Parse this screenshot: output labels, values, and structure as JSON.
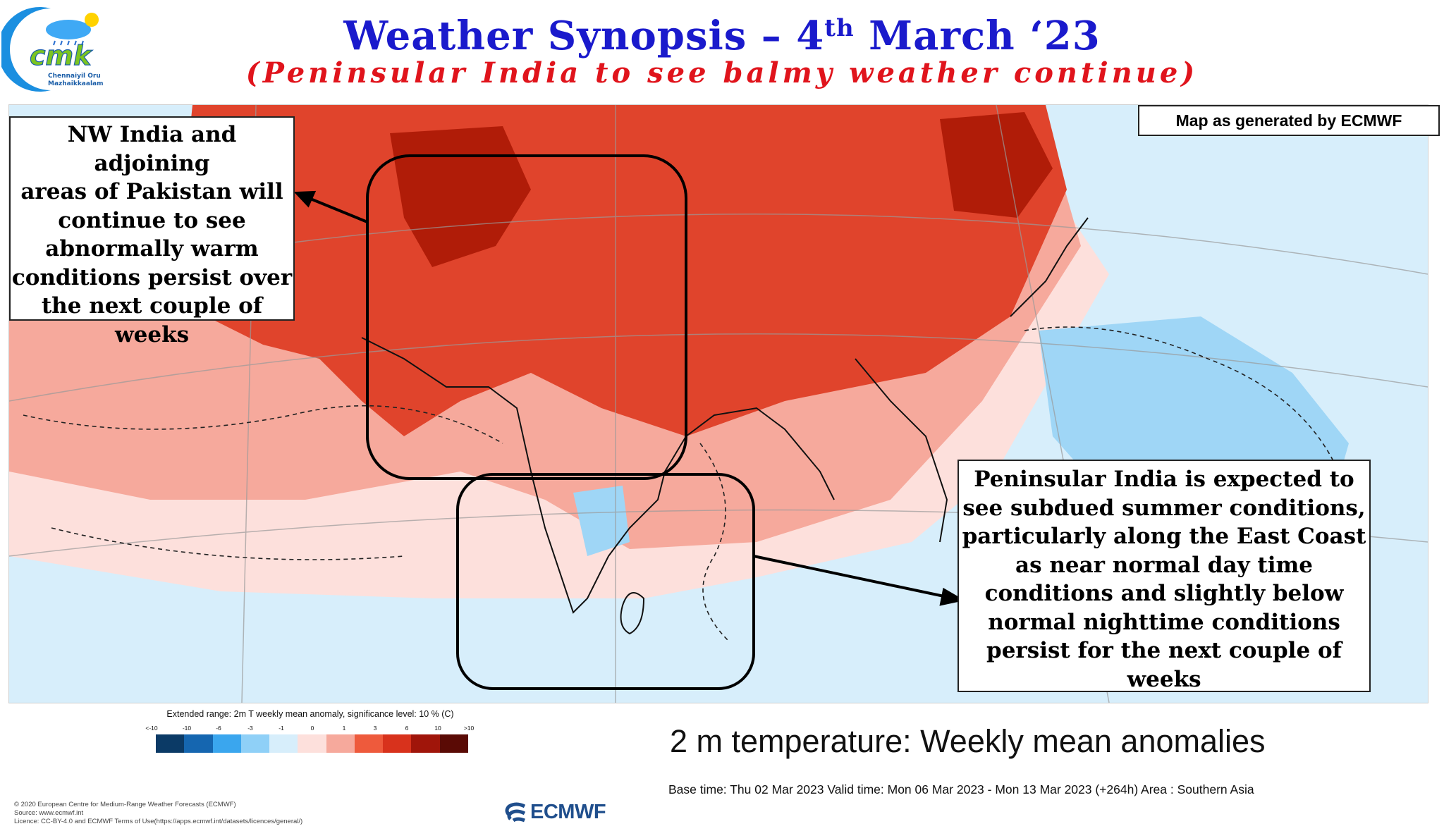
{
  "header": {
    "title_main": "Weather Synopsis – 4",
    "title_sup": "th",
    "title_end": " March ‘23",
    "subtitle": "(Peninsular India to see balmy weather continue)"
  },
  "logo": {
    "mark": "cmk",
    "line1": "Chennaiyil Oru",
    "line2": "Mazhaikkaalam"
  },
  "map_credit": "Map as generated by ECMWF",
  "callouts": {
    "nw": [
      "NW India and adjoining",
      "areas of Pakistan will",
      "continue to see",
      "abnormally warm",
      "conditions persist over",
      "the next couple of",
      "weeks"
    ],
    "peninsular": [
      "Peninsular India is expected to",
      "see subdued summer conditions,",
      "particularly along the East Coast",
      "as near normal day time",
      "conditions and slightly below",
      "normal nighttime conditions",
      "persist for the next couple of",
      "weeks"
    ]
  },
  "legend": {
    "title": "Extended range: 2m T weekly mean anomaly, significance level: 10 % (C)",
    "ticks": [
      "<-10",
      "-10",
      "-6",
      "-3",
      "-1",
      "0",
      "1",
      "3",
      "6",
      "10",
      ">10"
    ],
    "colors": [
      "#0b3a66",
      "#1566b0",
      "#3aa6ee",
      "#8fd0f7",
      "#d7eefb",
      "#fde0dc",
      "#f6a99c",
      "#ee5a3c",
      "#d8321c",
      "#a0150a",
      "#5a0a05"
    ]
  },
  "chart_title": "2 m temperature: Weekly mean anomalies",
  "base_time": "Base time: Thu 02 Mar 2023 Valid time: Mon 06 Mar 2023 - Mon 13 Mar 2023 (+264h) Area : Southern Asia",
  "copyright": [
    "© 2020 European Centre for Medium-Range Weather Forecasts (ECMWF)",
    "Source: www.ecmwf.int",
    "Licence: CC-BY-4.0 and ECMWF Terms of Use(https://apps.ecmwf.int/datasets/licences/general/)"
  ],
  "ecmwf_logo_text": "ECMWF",
  "map_colors": {
    "deep_red": "#b01c08",
    "red": "#e0442c",
    "orange_red": "#f07058",
    "salmon": "#f6a99c",
    "pink": "#fde0dc",
    "light_blue": "#d7eefb",
    "blue": "#9fd6f6"
  }
}
